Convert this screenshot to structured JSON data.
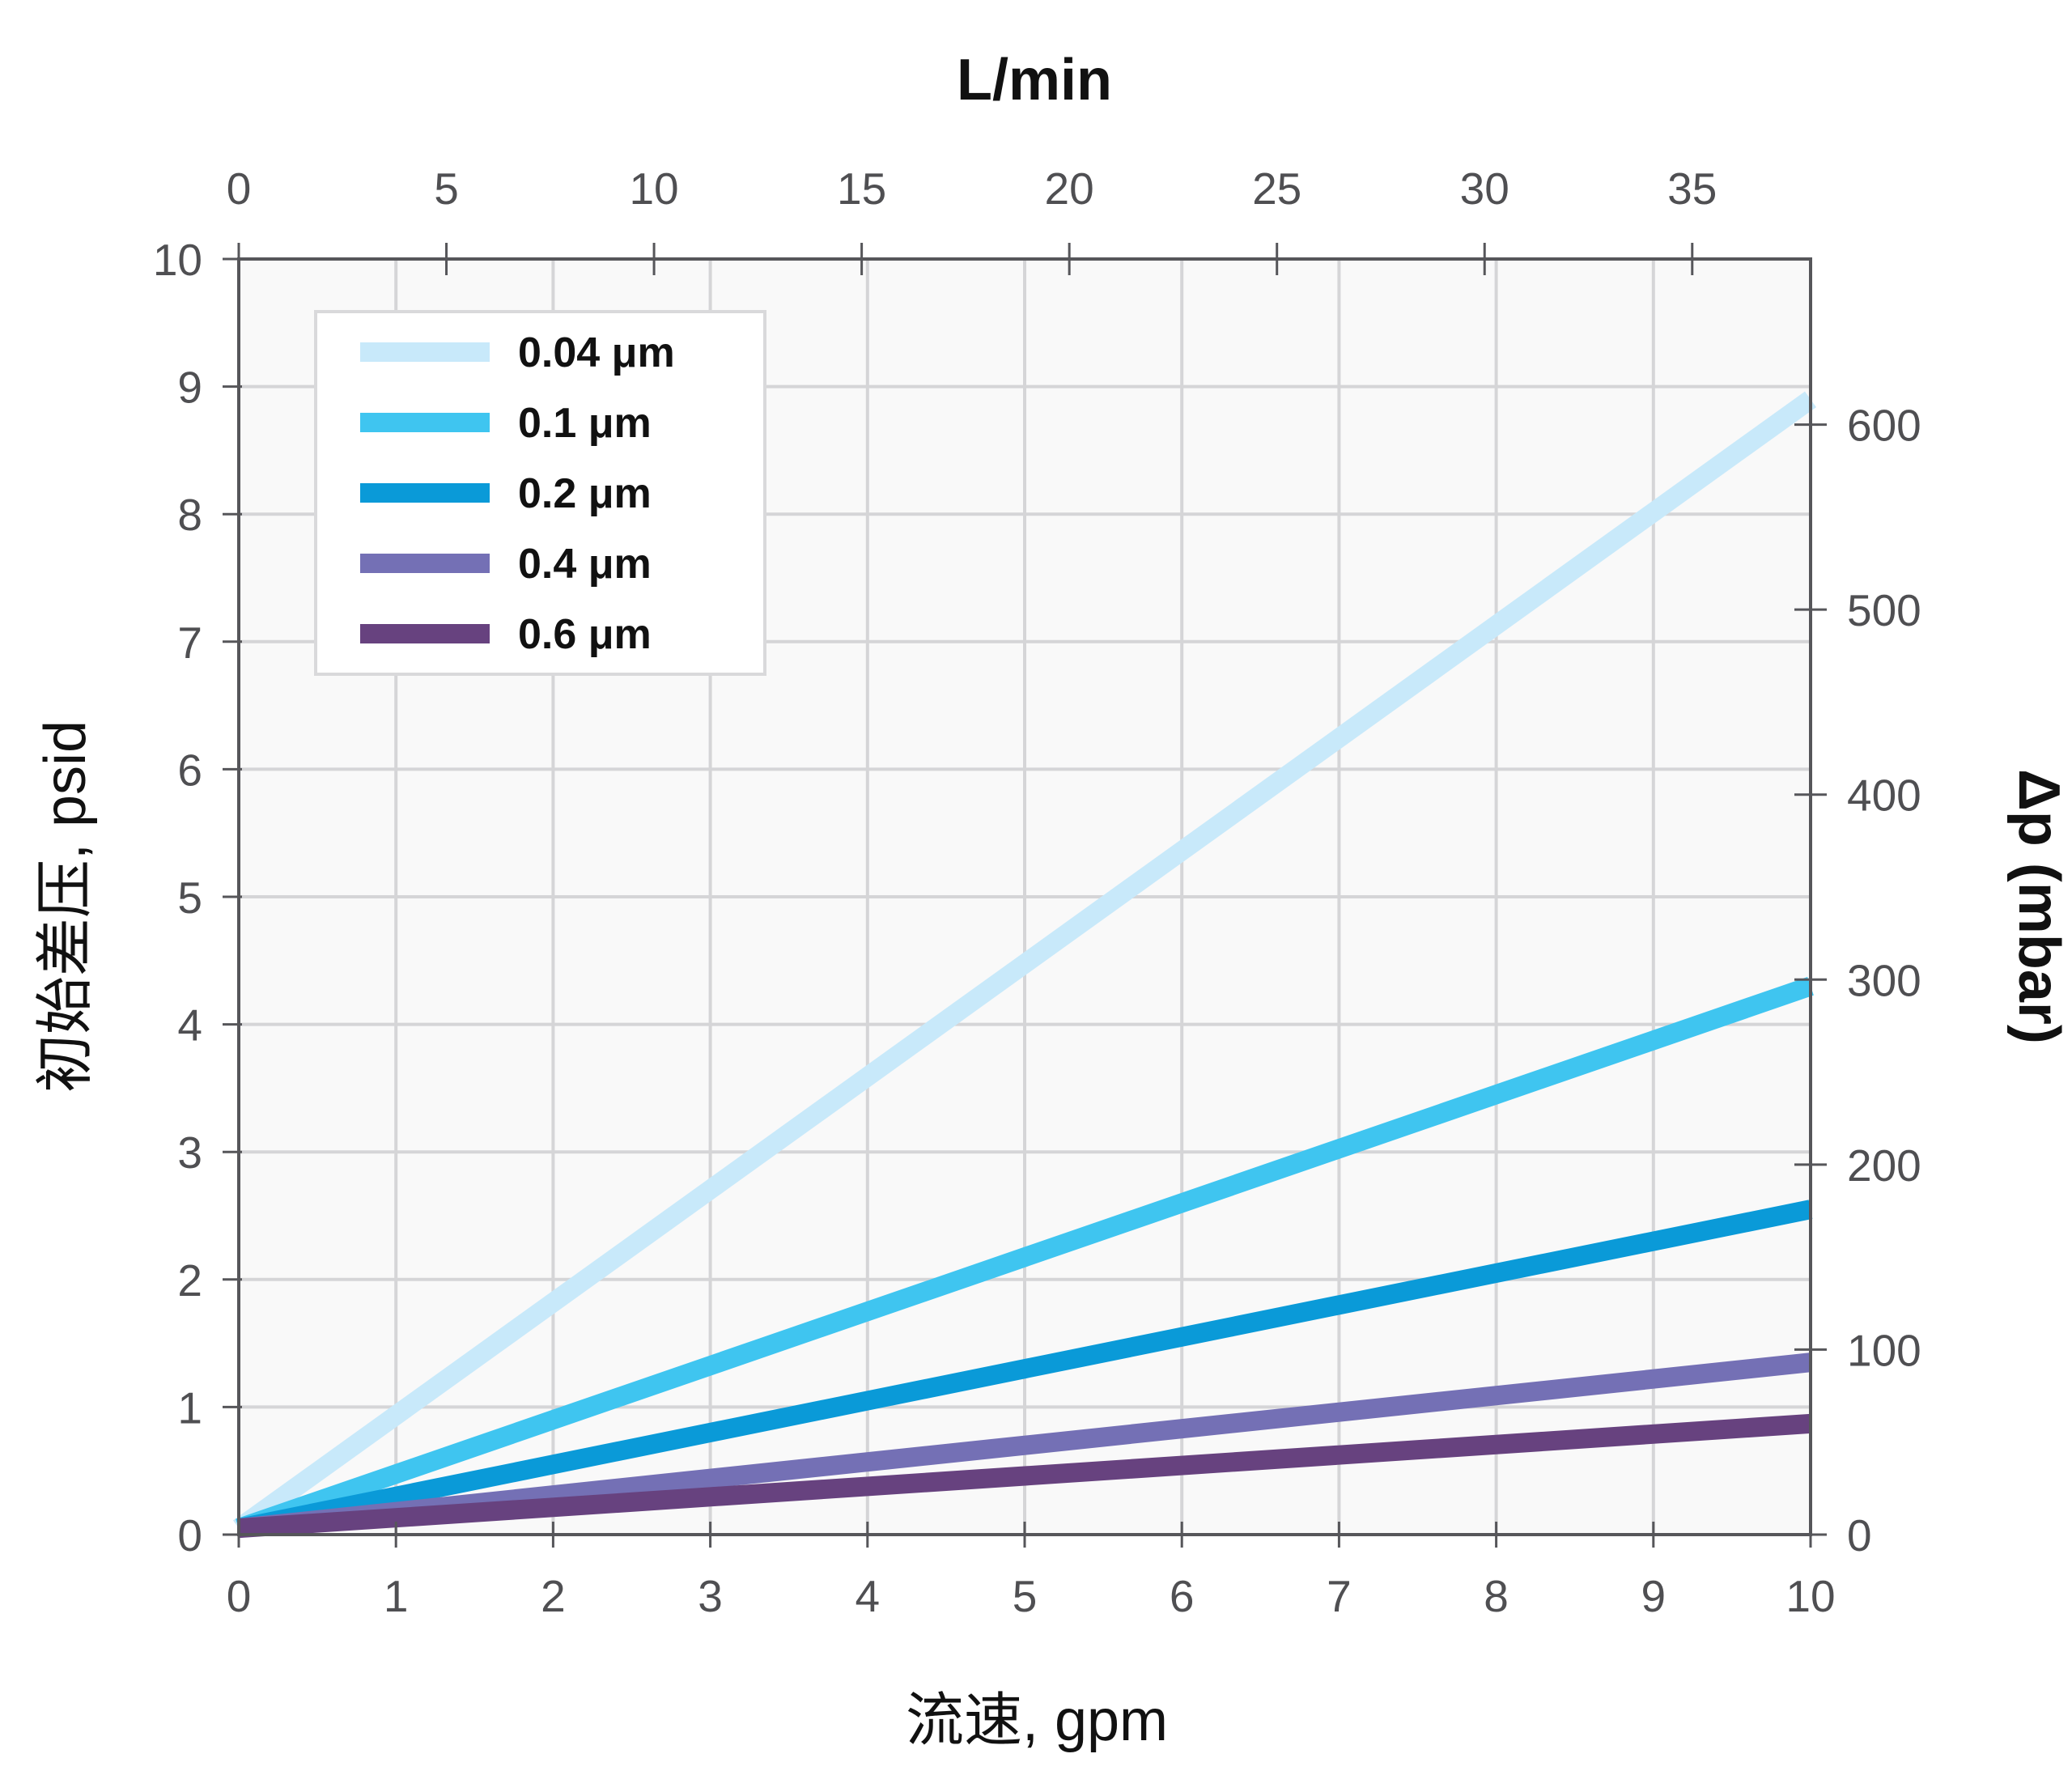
{
  "chart_data": {
    "type": "line",
    "xlabel": "流速, gpm",
    "ylabel": "初始差压, psid",
    "x2label": "L/min",
    "y2label": "Δp (mbar)",
    "xlim": [
      0,
      10
    ],
    "ylim": [
      0,
      10
    ],
    "x2lim": [
      0,
      37.85
    ],
    "y2lim": [
      0,
      689.5
    ],
    "x_ticks": [
      "0",
      "1",
      "2",
      "3",
      "4",
      "5",
      "6",
      "7",
      "8",
      "9",
      "10"
    ],
    "y_ticks": [
      "0",
      "1",
      "2",
      "3",
      "4",
      "5",
      "6",
      "7",
      "8",
      "9",
      "10"
    ],
    "x2_ticks": [
      "0",
      "5",
      "10",
      "15",
      "20",
      "25",
      "30",
      "35"
    ],
    "y2_ticks": [
      "0",
      "100",
      "200",
      "300",
      "400",
      "500",
      "600"
    ],
    "grid": true,
    "legend_position": "top-left",
    "series": [
      {
        "name": "0.04 μm",
        "color": "#c8e9fa",
        "x": [
          0,
          10
        ],
        "y": [
          0.05,
          8.9
        ]
      },
      {
        "name": "0.1   μm",
        "color": "#3fc5f0",
        "x": [
          0,
          10
        ],
        "y": [
          0.05,
          4.3
        ]
      },
      {
        "name": "0.2   μm",
        "color": "#0a9ad8",
        "x": [
          0,
          10
        ],
        "y": [
          0.05,
          2.55
        ]
      },
      {
        "name": "0.4   μm",
        "color": "#7470b5",
        "x": [
          0,
          10
        ],
        "y": [
          0.05,
          1.35
        ]
      },
      {
        "name": "0.6   μm",
        "color": "#67427f",
        "x": [
          0,
          10
        ],
        "y": [
          0.05,
          0.87
        ]
      }
    ]
  }
}
